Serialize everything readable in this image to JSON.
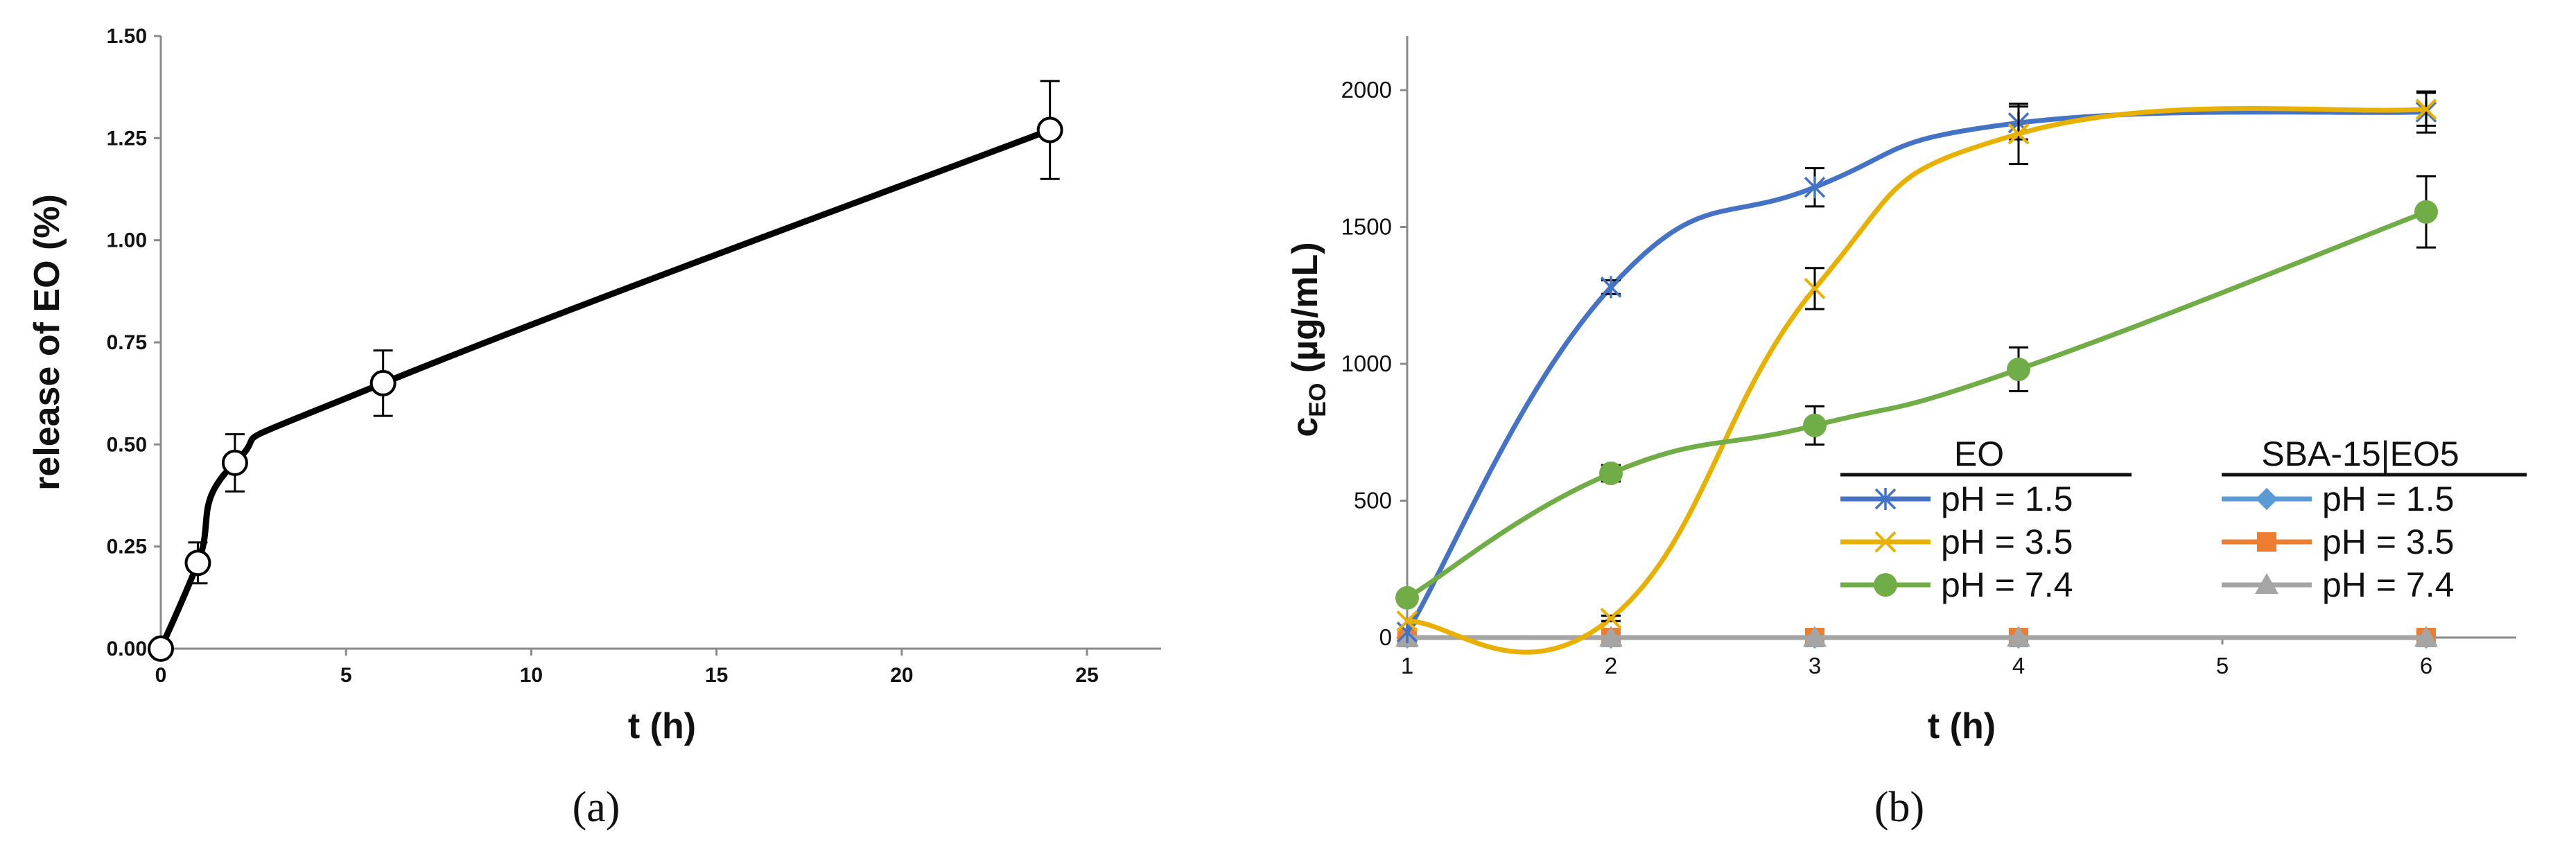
{
  "chart_data": [
    {
      "type": "line",
      "caption": "(a)",
      "xlabel": "t (h)",
      "ylabel": "release of EO (%)",
      "xlim": [
        0,
        27
      ],
      "ylim": [
        0,
        1.5
      ],
      "xticks": [
        "0",
        "5",
        "10",
        "15",
        "20",
        "25"
      ],
      "yticks": [
        "0.00",
        "0.25",
        "0.50",
        "0.75",
        "1.00",
        "1.25",
        "1.50"
      ],
      "grid": false,
      "series": [
        {
          "color": "#000000",
          "marker": "open-circle",
          "x": [
            0,
            1,
            2,
            6,
            24
          ],
          "y": [
            0.0,
            0.21,
            0.455,
            0.65,
            1.27
          ],
          "error": [
            0.0,
            0.05,
            0.07,
            0.08,
            0.12
          ]
        }
      ]
    },
    {
      "type": "line",
      "caption": "(b)",
      "xlabel": "t (h)",
      "ylabel": "c",
      "ylabel_subscript": "EO",
      "ylabel_unit": " (µg/mL)",
      "xlim": [
        1,
        6.3
      ],
      "ylim": [
        0,
        2000
      ],
      "xticks": [
        "1",
        "2",
        "3",
        "4",
        "5",
        "6"
      ],
      "yticks": [
        "0",
        "500",
        "1000",
        "1500",
        "2000"
      ],
      "grid": false,
      "legend_position": "center-right",
      "legend_groups": [
        "EO",
        "SBA-15|EO5"
      ],
      "series": [
        {
          "name": "pH = 1.5",
          "group": "EO",
          "color": "#4472C4",
          "marker": "star",
          "x": [
            1,
            2,
            3,
            4,
            6
          ],
          "y": [
            20,
            1280,
            1645,
            1880,
            1920
          ],
          "error": [
            0,
            25,
            70,
            60,
            75
          ]
        },
        {
          "name": "pH = 3.5",
          "group": "EO",
          "color": "#E8B100",
          "marker": "x",
          "x": [
            1,
            2,
            3,
            4,
            6
          ],
          "y": [
            60,
            70,
            1275,
            1840,
            1930
          ],
          "error": [
            0,
            10,
            75,
            110,
            60
          ]
        },
        {
          "name": "pH = 7.4",
          "group": "EO",
          "color": "#70AD47",
          "marker": "circle",
          "x": [
            1,
            2,
            3,
            4,
            6
          ],
          "y": [
            145,
            600,
            775,
            980,
            1555
          ],
          "error": [
            0,
            30,
            70,
            80,
            130
          ]
        },
        {
          "name": "pH = 1.5",
          "group": "SBA-15|EO5",
          "color": "#5B9BD5",
          "marker": "diamond",
          "x": [
            1,
            2,
            3,
            4,
            6
          ],
          "y": [
            0,
            0,
            0,
            0,
            0
          ],
          "error": [
            0,
            0,
            0,
            0,
            0
          ]
        },
        {
          "name": "pH = 3.5",
          "group": "SBA-15|EO5",
          "color": "#ED7D31",
          "marker": "square",
          "x": [
            1,
            2,
            3,
            4,
            6
          ],
          "y": [
            0,
            0,
            0,
            0,
            0
          ],
          "error": [
            0,
            0,
            0,
            0,
            0
          ]
        },
        {
          "name": "pH = 7.4",
          "group": "SBA-15|EO5",
          "color": "#A5A5A5",
          "marker": "triangle",
          "x": [
            1,
            2,
            3,
            4,
            6
          ],
          "y": [
            0,
            0,
            0,
            0,
            0
          ],
          "error": [
            0,
            0,
            0,
            0,
            0
          ]
        }
      ]
    }
  ]
}
